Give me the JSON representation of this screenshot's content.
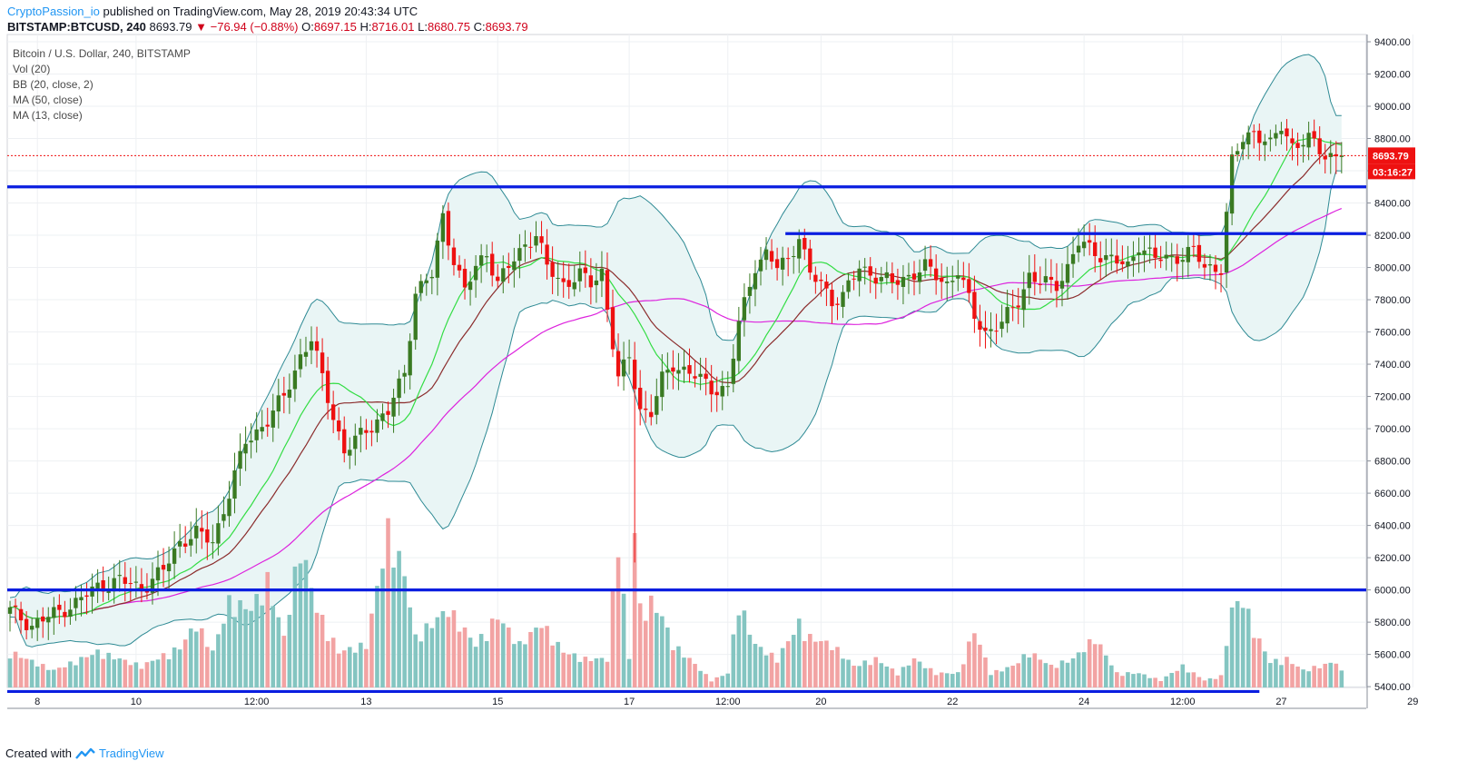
{
  "header": {
    "author": "CryptoPassion_io",
    "published_text": "published on TradingView.com, May 28, 2019 20:43:34 UTC"
  },
  "ohlc": {
    "symbol": "BITSTAMP:BTCUSD, 240",
    "last": "8693.79",
    "change": "−76.94 (−0.88%)",
    "o_label": "O:",
    "o": "8697.15",
    "h_label": "H:",
    "h": "8716.01",
    "l_label": "L:",
    "l": "8680.75",
    "c_label": "C:",
    "c": "8693.79"
  },
  "legend": {
    "title": "Bitcoin / U.S. Dollar, 240, BITSTAMP",
    "vol": "Vol (20)",
    "bb": "BB (20, close, 2)",
    "ma50": "MA (50, close)",
    "ma13": "MA (13, close)"
  },
  "footer": {
    "created_with": "Created with",
    "brand": "TradingView"
  },
  "colors": {
    "up": "#3a7a22",
    "down": "#ee1111",
    "vol_up": "#84c5c1",
    "vol_down": "#f2a3a3",
    "bb_line": "#2e8a94",
    "bb_fill": "#e9f5f5",
    "ma13": "#33dd44",
    "ma50": "#dd22dd",
    "bb_basis": "#8b2c2c",
    "hline": "#0a1ee0",
    "price_line": "#ee1111"
  },
  "chart_data": {
    "type": "candlestick",
    "price_axis": {
      "ticks": [
        "9400.00",
        "9200.00",
        "9000.00",
        "8800.00",
        "8600.00",
        "8400.00",
        "8200.00",
        "8000.00",
        "7800.00",
        "7600.00",
        "7400.00",
        "7200.00",
        "7000.00",
        "6800.00",
        "6600.00",
        "6400.00",
        "6200.00",
        "6000.00",
        "5800.00",
        "5600.00",
        "5400.00"
      ],
      "range": [
        5350,
        9400
      ]
    },
    "time_axis": {
      "labels": [
        "8",
        "10",
        "12:00",
        "13",
        "15",
        "17",
        "12:00",
        "20",
        "22",
        "24",
        "12:00",
        "27",
        "29"
      ],
      "label_index": [
        5,
        23,
        45,
        65,
        89,
        113,
        131,
        148,
        172,
        196,
        214,
        232,
        256
      ]
    },
    "last_price_label": "8693.79",
    "countdown_label": "03:16:27",
    "horizontal_levels": [
      {
        "price": 8500,
        "from_index": 0,
        "to_index": "end"
      },
      {
        "price": 8210,
        "from_index": 142,
        "to_index": "end"
      },
      {
        "price": 6000,
        "from_index": 0,
        "to_index": "end"
      },
      {
        "price": 5370,
        "from_index": 0,
        "to_index": 228
      }
    ],
    "waypoints": [
      [
        0,
        5870
      ],
      [
        4,
        5780
      ],
      [
        8,
        5850
      ],
      [
        12,
        5920
      ],
      [
        16,
        6020
      ],
      [
        20,
        6060
      ],
      [
        24,
        6010
      ],
      [
        28,
        6120
      ],
      [
        31,
        6300
      ],
      [
        34,
        6350
      ],
      [
        37,
        6300
      ],
      [
        40,
        6600
      ],
      [
        43,
        6920
      ],
      [
        47,
        7050
      ],
      [
        50,
        7200
      ],
      [
        53,
        7450
      ],
      [
        55,
        7550
      ],
      [
        58,
        7200
      ],
      [
        61,
        6850
      ],
      [
        65,
        7000
      ],
      [
        69,
        7100
      ],
      [
        72,
        7350
      ],
      [
        74,
        7850
      ],
      [
        77,
        7950
      ],
      [
        79,
        8320
      ],
      [
        81,
        8050
      ],
      [
        83,
        7850
      ],
      [
        85,
        8000
      ],
      [
        87,
        8100
      ],
      [
        89,
        7900
      ],
      [
        91,
        8000
      ],
      [
        94,
        8150
      ],
      [
        96,
        8200
      ],
      [
        98,
        8000
      ],
      [
        101,
        7900
      ],
      [
        104,
        7950
      ],
      [
        106,
        7900
      ],
      [
        108,
        7980
      ],
      [
        111,
        7300
      ],
      [
        113,
        7450
      ],
      [
        115,
        7120
      ],
      [
        117,
        7100
      ],
      [
        119,
        7300
      ],
      [
        121,
        7400
      ],
      [
        124,
        7350
      ],
      [
        126,
        7300
      ],
      [
        128,
        7250
      ],
      [
        131,
        7250
      ],
      [
        133,
        7650
      ],
      [
        136,
        8020
      ],
      [
        138,
        8080
      ],
      [
        140,
        8000
      ],
      [
        142,
        8050
      ],
      [
        144,
        8200
      ],
      [
        146,
        7950
      ],
      [
        148,
        7900
      ],
      [
        150,
        7800
      ],
      [
        152,
        7820
      ],
      [
        155,
        8000
      ],
      [
        158,
        7950
      ],
      [
        161,
        7900
      ],
      [
        164,
        7950
      ],
      [
        167,
        8000
      ],
      [
        169,
        7950
      ],
      [
        171,
        7900
      ],
      [
        173,
        7980
      ],
      [
        176,
        7700
      ],
      [
        178,
        7600
      ],
      [
        181,
        7650
      ],
      [
        184,
        7800
      ],
      [
        186,
        7950
      ],
      [
        188,
        7900
      ],
      [
        191,
        7900
      ],
      [
        193,
        8000
      ],
      [
        195,
        8150
      ],
      [
        198,
        8100
      ],
      [
        201,
        8050
      ],
      [
        204,
        8000
      ],
      [
        206,
        8150
      ],
      [
        209,
        8050
      ],
      [
        212,
        8060
      ],
      [
        216,
        8100
      ],
      [
        218,
        8000
      ],
      [
        221,
        8000
      ],
      [
        223,
        8650
      ],
      [
        225,
        8800
      ],
      [
        227,
        8850
      ],
      [
        230,
        8750
      ],
      [
        232,
        8880
      ],
      [
        234,
        8760
      ],
      [
        237,
        8790
      ],
      [
        240,
        8700
      ],
      [
        243,
        8693.79
      ]
    ],
    "spike": {
      "index": 114,
      "low": 6170
    },
    "volume_peaks": [
      [
        0,
        0.25
      ],
      [
        8,
        0.12
      ],
      [
        16,
        0.25
      ],
      [
        24,
        0.15
      ],
      [
        31,
        0.28
      ],
      [
        34,
        0.45
      ],
      [
        37,
        0.25
      ],
      [
        40,
        0.6
      ],
      [
        44,
        0.55
      ],
      [
        47,
        0.75
      ],
      [
        50,
        0.35
      ],
      [
        53,
        1.0
      ],
      [
        56,
        0.55
      ],
      [
        60,
        0.25
      ],
      [
        65,
        0.3
      ],
      [
        69,
        1.1
      ],
      [
        72,
        0.8
      ],
      [
        74,
        0.35
      ],
      [
        77,
        0.45
      ],
      [
        80,
        0.55
      ],
      [
        85,
        0.3
      ],
      [
        89,
        0.5
      ],
      [
        93,
        0.3
      ],
      [
        97,
        0.45
      ],
      [
        101,
        0.25
      ],
      [
        105,
        0.2
      ],
      [
        109,
        0.2
      ],
      [
        111,
        1.05
      ],
      [
        113,
        0.2
      ],
      [
        115,
        0.55
      ],
      [
        117,
        0.6
      ],
      [
        119,
        0.5
      ],
      [
        121,
        0.3
      ],
      [
        124,
        0.2
      ],
      [
        128,
        0.05
      ],
      [
        131,
        0.1
      ],
      [
        133,
        0.6
      ],
      [
        136,
        0.3
      ],
      [
        140,
        0.2
      ],
      [
        144,
        0.45
      ],
      [
        146,
        0.35
      ],
      [
        150,
        0.3
      ],
      [
        154,
        0.15
      ],
      [
        158,
        0.2
      ],
      [
        162,
        0.1
      ],
      [
        165,
        0.2
      ],
      [
        169,
        0.1
      ],
      [
        173,
        0.1
      ],
      [
        176,
        0.4
      ],
      [
        179,
        0.1
      ],
      [
        183,
        0.15
      ],
      [
        186,
        0.25
      ],
      [
        190,
        0.15
      ],
      [
        194,
        0.2
      ],
      [
        198,
        0.35
      ],
      [
        202,
        0.1
      ],
      [
        206,
        0.1
      ],
      [
        210,
        0.05
      ],
      [
        214,
        0.15
      ],
      [
        218,
        0.05
      ],
      [
        221,
        0.08
      ],
      [
        223,
        0.55
      ],
      [
        225,
        0.62
      ],
      [
        227,
        0.4
      ],
      [
        230,
        0.18
      ],
      [
        233,
        0.2
      ],
      [
        236,
        0.12
      ],
      [
        239,
        0.15
      ],
      [
        242,
        0.18
      ],
      [
        244,
        0.04
      ]
    ],
    "title": "Bitcoin / U.S. Dollar, 240, BITSTAMP"
  }
}
